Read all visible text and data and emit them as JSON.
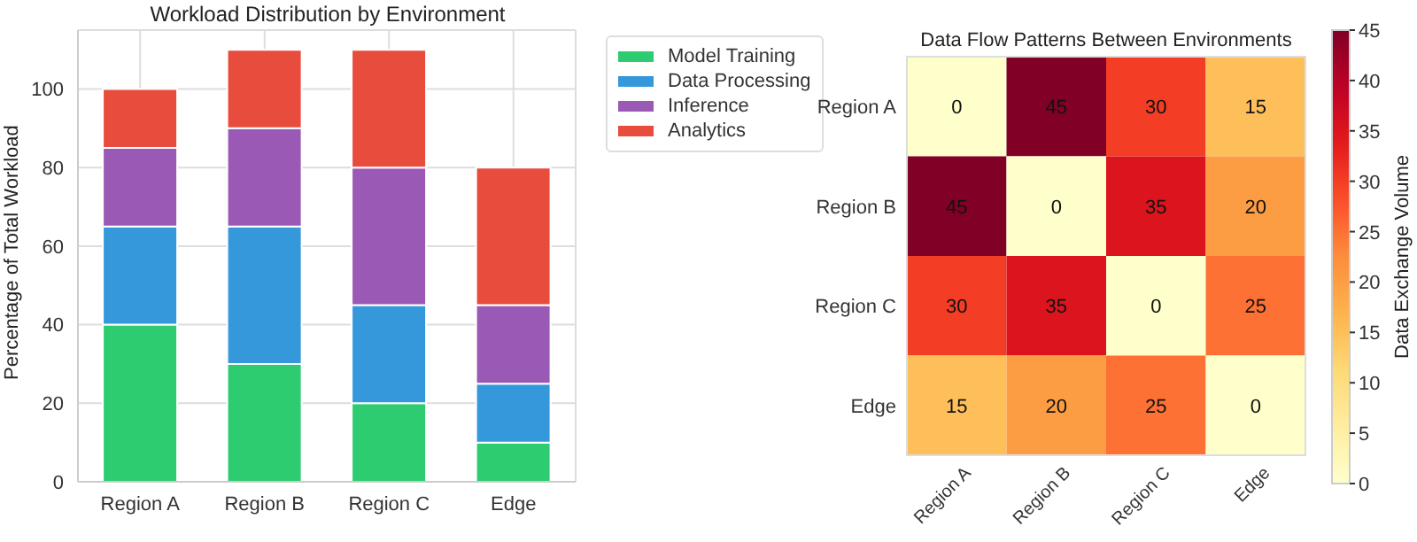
{
  "chart_data": [
    {
      "type": "bar",
      "title": "Workload Distribution by Environment",
      "ylabel": "Percentage of Total Workload",
      "categories": [
        "Region A",
        "Region B",
        "Region C",
        "Edge"
      ],
      "stacked": true,
      "series": [
        {
          "name": "Model Training",
          "color": "#2ecc71",
          "values": [
            40,
            30,
            20,
            10
          ]
        },
        {
          "name": "Data Processing",
          "color": "#3498db",
          "values": [
            25,
            35,
            25,
            15
          ]
        },
        {
          "name": "Inference",
          "color": "#9b59b6",
          "values": [
            20,
            25,
            35,
            20
          ]
        },
        {
          "name": "Analytics",
          "color": "#e74c3c",
          "values": [
            15,
            20,
            30,
            35
          ]
        }
      ],
      "ylim": [
        0,
        115
      ],
      "yticks": [
        0,
        20,
        40,
        60,
        80,
        100
      ],
      "grid": true,
      "legend": "top right"
    },
    {
      "type": "heatmap",
      "title": "Data Flow Patterns Between Environments",
      "clabel": "Data Exchange Volume",
      "categories": [
        "Region A",
        "Region B",
        "Region C",
        "Edge"
      ],
      "y_categories": [
        "Region A",
        "Region B",
        "Region C",
        "Edge"
      ],
      "cells": [
        [
          0,
          45,
          30,
          15
        ],
        [
          45,
          0,
          35,
          20
        ],
        [
          30,
          35,
          0,
          25
        ],
        [
          15,
          20,
          25,
          0
        ]
      ],
      "clim": [
        0,
        45
      ],
      "cticks": [
        0,
        5,
        10,
        15,
        20,
        25,
        30,
        35,
        40,
        45
      ],
      "data_labels": true
    }
  ]
}
